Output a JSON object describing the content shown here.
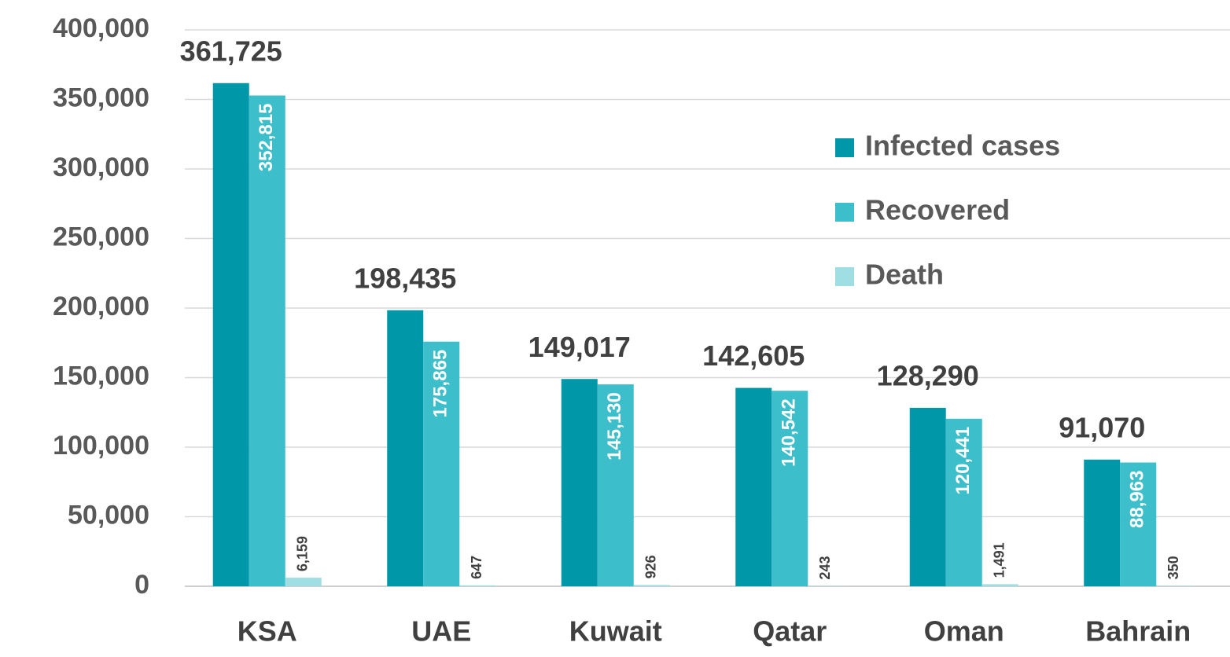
{
  "chart_data": {
    "type": "bar",
    "categories": [
      "KSA",
      "UAE",
      "Kuwait",
      "Qatar",
      "Oman",
      "Bahrain"
    ],
    "series": [
      {
        "name": "Infected cases",
        "color": "#0097a9",
        "values": [
          361725,
          198435,
          149017,
          142605,
          128290,
          91070
        ],
        "value_labels": [
          "361,725",
          "198,435",
          "149,017",
          "142,605",
          "128,290",
          "91,070"
        ]
      },
      {
        "name": "Recovered",
        "color": "#3cbfca",
        "values": [
          352815,
          175865,
          145130,
          140542,
          120441,
          88963
        ],
        "value_labels": [
          "352,815",
          "175,865",
          "145,130",
          "140,542",
          "120,441",
          "88,963"
        ]
      },
      {
        "name": "Death",
        "color": "#9fdfe4",
        "values": [
          6159,
          647,
          926,
          243,
          1491,
          350
        ],
        "value_labels": [
          "6,159",
          "647",
          "926",
          "243",
          "1,491",
          "350"
        ]
      }
    ],
    "ylim": [
      0,
      400000
    ],
    "yticks": [
      0,
      {
        "value": 50000,
        "label": "50,000"
      },
      {
        "value": 100000,
        "label": "100,000"
      },
      {
        "value": 150000,
        "label": "150,000"
      },
      {
        "value": 200000,
        "label": "200,000"
      },
      {
        "value": 250000,
        "label": "250,000"
      },
      {
        "value": 300000,
        "label": "300,000"
      },
      {
        "value": 350000,
        "label": "350,000"
      },
      {
        "value": 400000,
        "label": "400,000"
      }
    ],
    "grid": true
  }
}
